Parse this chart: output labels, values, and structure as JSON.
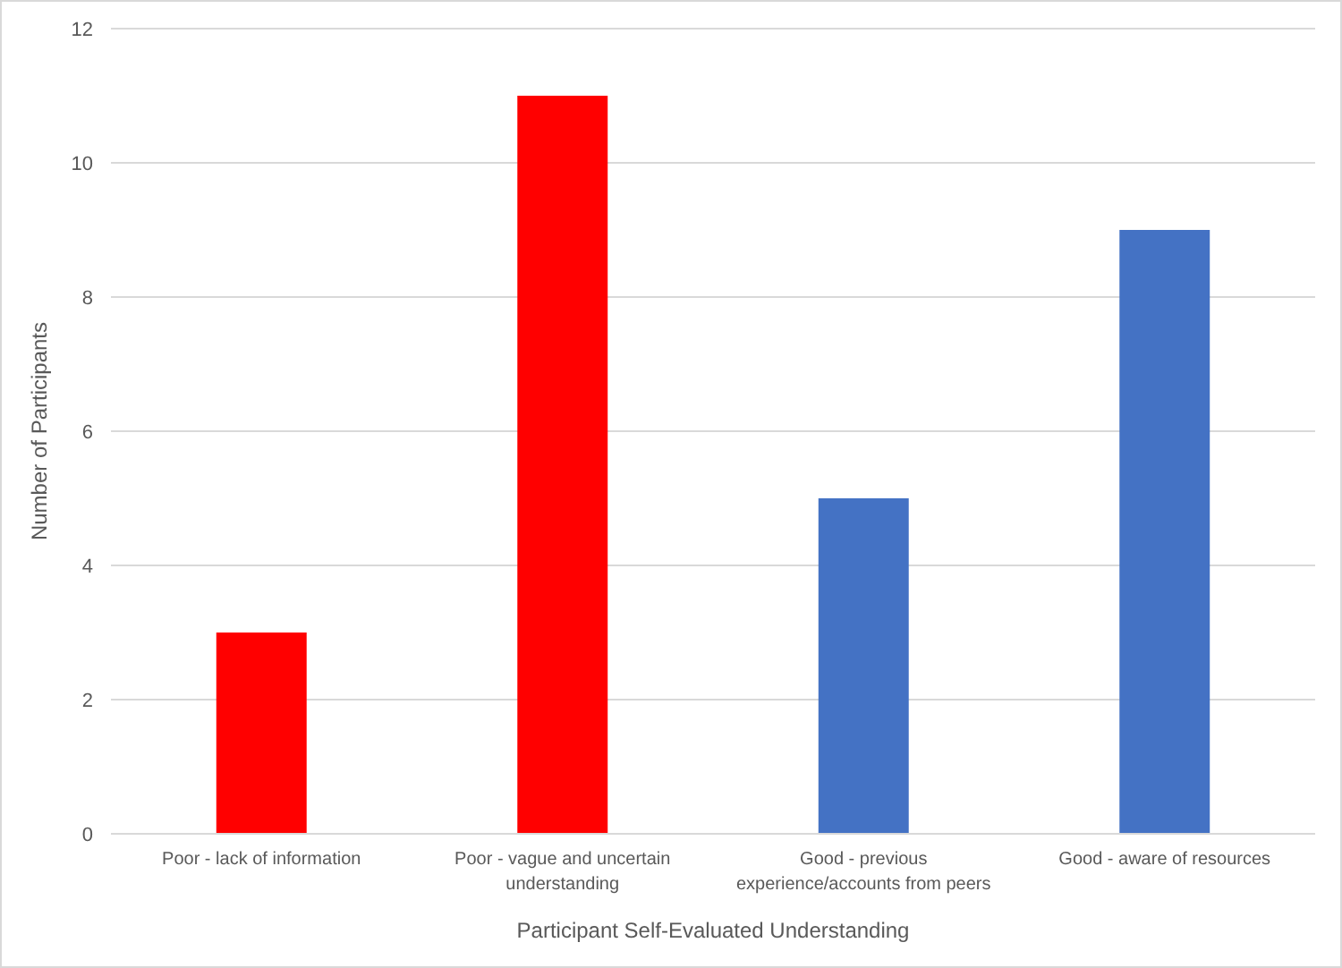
{
  "chart_data": {
    "type": "bar",
    "xlabel": "Participant Self-Evaluated Understanding",
    "ylabel": "Number of Participants",
    "categories": [
      "Poor - lack of information",
      "Poor - vague and uncertain understanding",
      "Good - previous experience/accounts from peers",
      "Good - aware of resources"
    ],
    "values": [
      3,
      11,
      5,
      9
    ],
    "colors": [
      "#ff0000",
      "#ff0000",
      "#4472c4",
      "#4472c4"
    ],
    "ylim": [
      0,
      12
    ],
    "yticks": [
      0,
      2,
      4,
      6,
      8,
      10,
      12
    ],
    "grid": "y"
  }
}
